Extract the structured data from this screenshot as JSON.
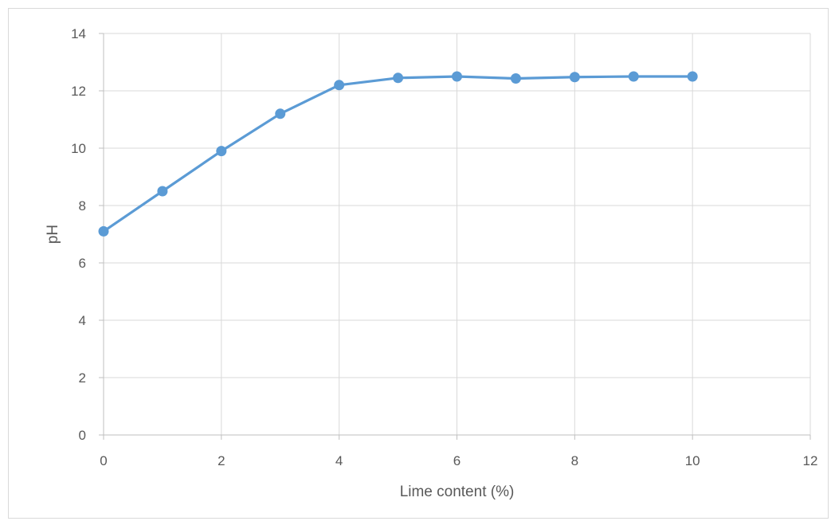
{
  "chart_data": {
    "type": "line",
    "title": "",
    "xlabel": "Lime content (%)",
    "ylabel": "pH",
    "xlim": [
      0,
      12
    ],
    "ylim": [
      0,
      14
    ],
    "xticks": [
      0,
      2,
      4,
      6,
      8,
      10,
      12
    ],
    "yticks": [
      0,
      2,
      4,
      6,
      8,
      10,
      12,
      14
    ],
    "grid": true,
    "legend": "none",
    "series": [
      {
        "color": "#5b9bd5",
        "marker": "circle",
        "x": [
          0,
          1,
          2,
          3,
          4,
          5,
          6,
          7,
          8,
          9,
          10
        ],
        "y": [
          7.1,
          8.5,
          9.9,
          11.2,
          12.2,
          12.45,
          12.5,
          12.43,
          12.48,
          12.5,
          12.5
        ]
      }
    ]
  }
}
